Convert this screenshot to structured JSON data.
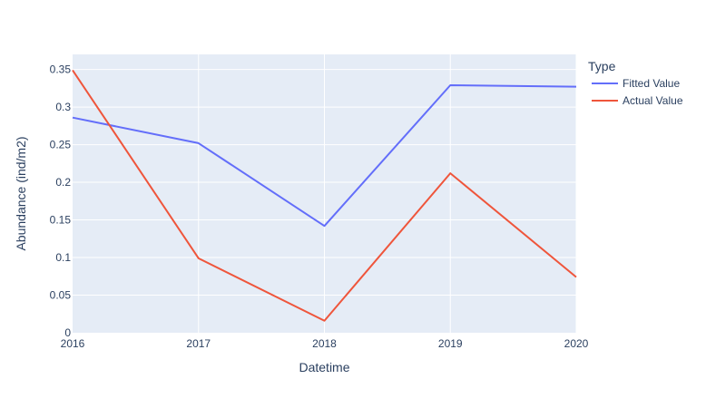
{
  "chart_data": {
    "type": "line",
    "xlabel": "Datetime",
    "ylabel": "Abundance (ind/m2)",
    "x": [
      "2016",
      "2017",
      "2018",
      "2019",
      "2020"
    ],
    "x_numeric": [
      2016,
      2017,
      2018,
      2019,
      2020
    ],
    "xlim": [
      2016,
      2020
    ],
    "ylim": [
      0,
      0.37
    ],
    "y_ticks": [
      0,
      0.05,
      0.1,
      0.15,
      0.2,
      0.25,
      0.3,
      0.35
    ],
    "y_tick_labels": [
      "0",
      "0.05",
      "0.1",
      "0.15",
      "0.2",
      "0.25",
      "0.3",
      "0.35"
    ],
    "grid": true,
    "legend": {
      "title": "Type",
      "position": "top-right"
    },
    "series": [
      {
        "name": "Fitted Value",
        "color": "#636efa",
        "values": [
          0.286,
          0.252,
          0.142,
          0.329,
          0.327
        ]
      },
      {
        "name": "Actual Value",
        "color": "#ef553b",
        "values": [
          0.349,
          0.099,
          0.016,
          0.212,
          0.074
        ]
      }
    ],
    "colors": {
      "plot_background": "#e5ecf6",
      "grid": "#ffffff",
      "text": "#2a3f5f"
    }
  }
}
